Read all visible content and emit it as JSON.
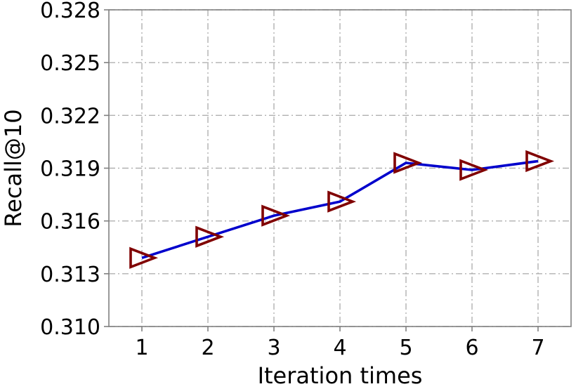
{
  "chart_data": {
    "type": "line",
    "title": "",
    "xlabel": "Iteration times",
    "ylabel": "Recall@10",
    "x": [
      1,
      2,
      3,
      4,
      5,
      6,
      7
    ],
    "series": [
      {
        "values": [
          0.3139,
          0.3151,
          0.3163,
          0.3171,
          0.3193,
          0.3189,
          0.3194
        ],
        "line_color": "#0000cc",
        "marker": "triangle-right",
        "marker_color": "#800000"
      }
    ],
    "xticks": [
      "1",
      "2",
      "3",
      "4",
      "5",
      "6",
      "7"
    ],
    "yticks": [
      "0.310",
      "0.313",
      "0.316",
      "0.319",
      "0.322",
      "0.325",
      "0.328"
    ],
    "xlim": [
      0.5,
      7.5
    ],
    "ylim": [
      0.31,
      0.328
    ],
    "grid": true,
    "grid_style": "dashdot",
    "colors": {
      "grid": "#b0b0b0",
      "axes": "#808080"
    }
  }
}
